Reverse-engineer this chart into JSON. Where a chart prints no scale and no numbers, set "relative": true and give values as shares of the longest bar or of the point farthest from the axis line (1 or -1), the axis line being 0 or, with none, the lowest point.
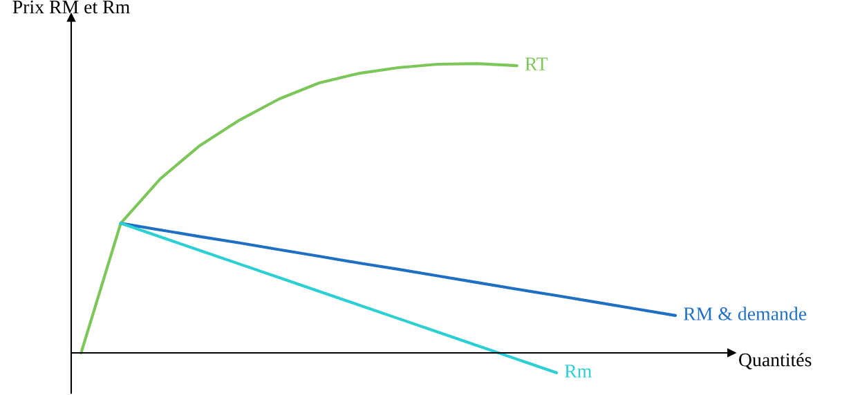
{
  "chart_data": {
    "type": "line",
    "relative": true,
    "xlabel": "Quantités",
    "ylabel": "Prix RM et Rm",
    "legend": false,
    "categories": [
      null,
      null,
      null,
      null,
      null,
      null,
      null,
      null,
      null,
      null,
      null,
      null,
      null,
      null,
      null,
      null
    ],
    "series": [
      {
        "name": "RT",
        "color": "#7dc75a",
        "values": [
          0,
          0.448,
          0.602,
          0.717,
          0.805,
          0.878,
          0.933,
          0.966,
          0.986,
          0.998,
          1.0,
          0.993,
          null,
          null,
          null,
          null
        ]
      },
      {
        "name": "RM & demande",
        "color": "#1f6fc5",
        "values": [
          null,
          0.448,
          0.425,
          0.402,
          0.38,
          0.357,
          0.334,
          0.311,
          0.289,
          0.266,
          0.243,
          0.22,
          0.198,
          0.175,
          0.152,
          0.129
        ]
      },
      {
        "name": "Rm",
        "color": "#2ccfd3",
        "values": [
          null,
          0.448,
          0.401,
          0.354,
          0.307,
          0.26,
          0.213,
          0.166,
          0.119,
          0.072,
          0.025,
          -0.022,
          -0.069,
          null,
          null,
          null
        ]
      }
    ]
  }
}
